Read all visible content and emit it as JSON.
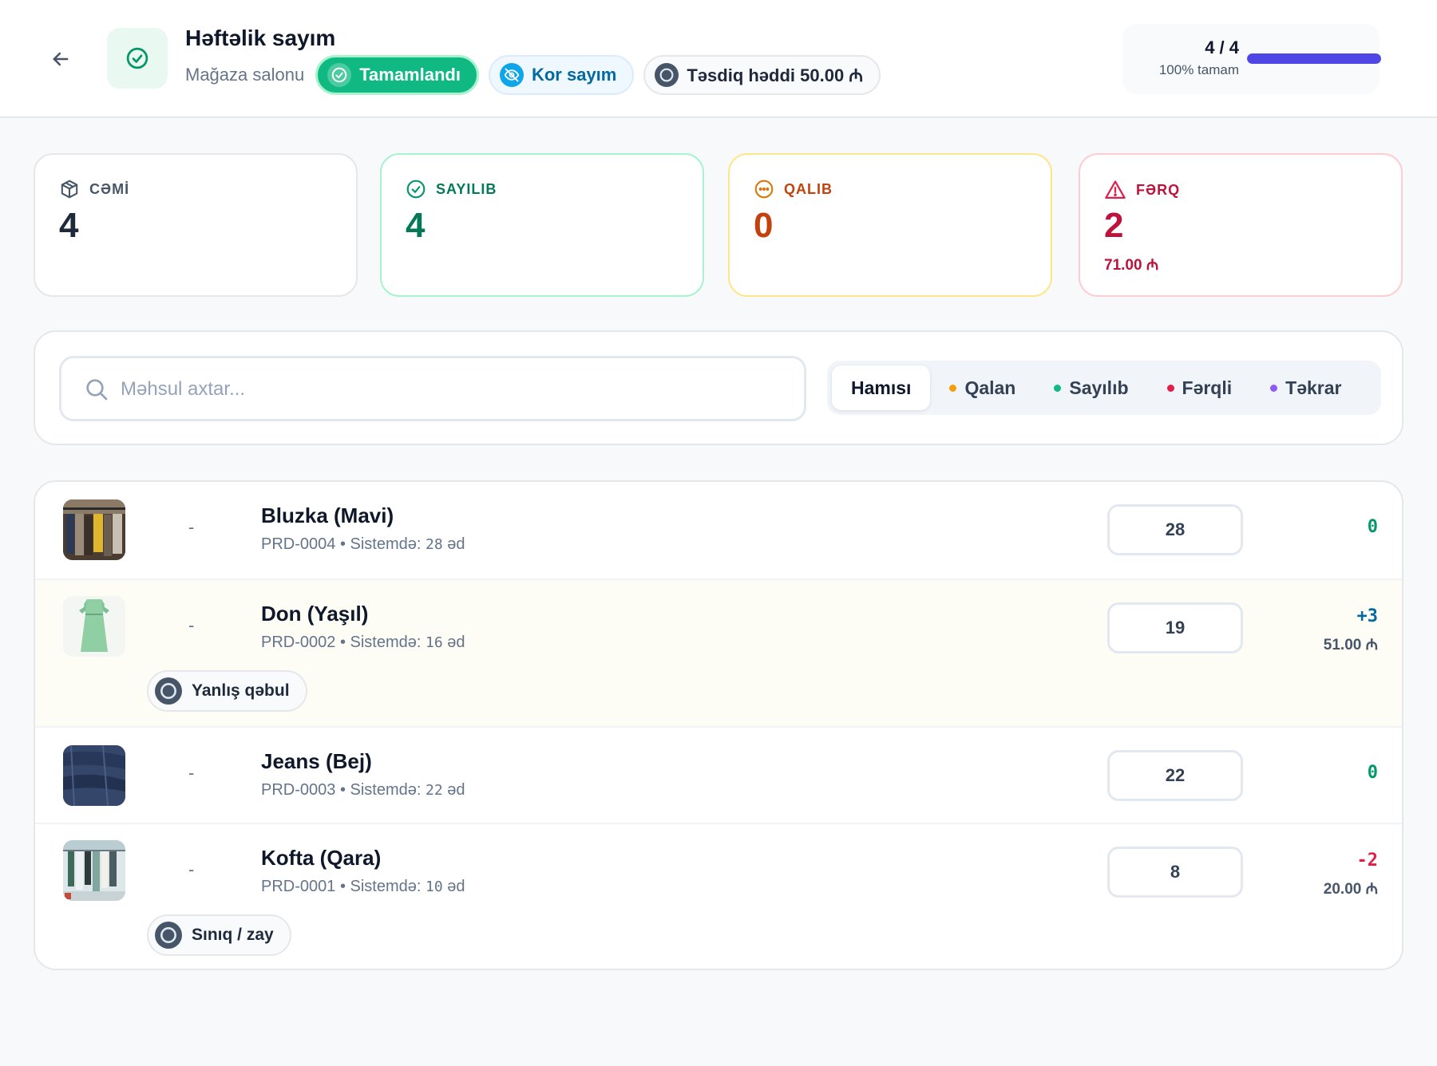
{
  "header": {
    "title": "Həftəlik sayım",
    "location": "Mağaza salonu",
    "status_chip": "Tamamlandı",
    "blind_chip": "Kor sayım",
    "threshold_chip": "Təsdiq həddi 50.00 ₼",
    "progress": {
      "count": "4 / 4",
      "label": "100% tamam",
      "fraction": 1.0
    }
  },
  "stats": [
    {
      "label": "CƏMİ",
      "value": "4",
      "extra": "",
      "icon": "box-icon",
      "color": "#1e293b"
    },
    {
      "label": "SAYILIB",
      "value": "4",
      "extra": "",
      "icon": "check-circle-icon",
      "color": "#047857"
    },
    {
      "label": "QALIB",
      "value": "0",
      "extra": "",
      "icon": "dots-circle-icon",
      "color": "#c2410c"
    },
    {
      "label": "FƏRQ",
      "value": "2",
      "extra": "71.00 ₼",
      "icon": "warning-triangle-icon",
      "color": "#be123c"
    }
  ],
  "search": {
    "placeholder": "Məhsul axtar..."
  },
  "filters": [
    {
      "label": "Hamısı",
      "active": true,
      "dot": ""
    },
    {
      "label": "Qalan",
      "active": false,
      "dot": "#f59e0b"
    },
    {
      "label": "Sayılıb",
      "active": false,
      "dot": "#10b981"
    },
    {
      "label": "Fərqli",
      "active": false,
      "dot": "#e11d48"
    },
    {
      "label": "Təkrar",
      "active": false,
      "dot": "#8b5cf6"
    }
  ],
  "items": [
    {
      "name": "Bluzka (Mavi)",
      "sku": "PRD-0004",
      "system_label": "Sistemdə:",
      "system_qty": "28",
      "unit": "əd",
      "dash": "-",
      "counted": "28",
      "diff": "0",
      "diff_money": "",
      "reason": "",
      "image": "blouse-rack-image"
    },
    {
      "name": "Don (Yaşıl)",
      "sku": "PRD-0002",
      "system_label": "Sistemdə:",
      "system_qty": "16",
      "unit": "əd",
      "dash": "-",
      "counted": "19",
      "diff": "+3",
      "diff_money": "51.00 ₼",
      "reason": "Yanlış qəbul",
      "image": "green-dress-image"
    },
    {
      "name": "Jeans (Bej)",
      "sku": "PRD-0003",
      "system_label": "Sistemdə:",
      "system_qty": "22",
      "unit": "əd",
      "dash": "-",
      "counted": "22",
      "diff": "0",
      "diff_money": "",
      "reason": "",
      "image": "jeans-image"
    },
    {
      "name": "Kofta (Qara)",
      "sku": "PRD-0001",
      "system_label": "Sistemdə:",
      "system_qty": "10",
      "unit": "əd",
      "dash": "-",
      "counted": "8",
      "diff": "-2",
      "diff_money": "20.00 ₼",
      "reason": "Sınıq / zay",
      "image": "clothes-rack-image"
    }
  ],
  "colors": {
    "accent": "#4f46e5",
    "success": "#10b981",
    "positive_diff": "#0369a1",
    "negative_diff": "#e11d48",
    "zero_diff": "#059669"
  }
}
